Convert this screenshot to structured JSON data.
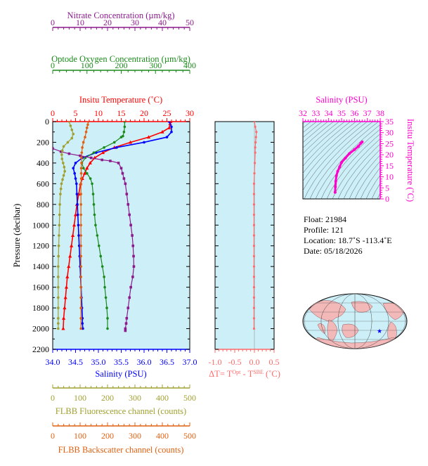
{
  "colors": {
    "nitrate": "#8b1a8b",
    "oxygen": "#1a8a1a",
    "temperature": "#ff0000",
    "salinity": "#0000ff",
    "fluorescence": "#a0a030",
    "backscatter": "#e06010",
    "deltaT": "#ff6a6a",
    "ts": "#ff00cc",
    "plot_bg": "#cdeff8"
  },
  "axes": {
    "nitrate": {
      "label": "Nitrate Concentration (µm/kg)",
      "range": [
        0,
        50
      ],
      "ticks": [
        "0",
        "10",
        "20",
        "30",
        "40",
        "50"
      ]
    },
    "oxygen": {
      "label": "Optode Oxygen Concentration (µm/kg)",
      "range": [
        0,
        400
      ],
      "ticks": [
        "0",
        "100",
        "200",
        "300",
        "400"
      ]
    },
    "temperature": {
      "label": "Insitu Temperature (˚C)",
      "range": [
        0,
        30
      ],
      "ticks": [
        "0",
        "5",
        "10",
        "15",
        "20",
        "25",
        "30"
      ]
    },
    "pressure": {
      "label": "Pressure (decibar)",
      "range": [
        0,
        2200
      ],
      "ticks": [
        "0",
        "200",
        "400",
        "600",
        "800",
        "1000",
        "1200",
        "1400",
        "1600",
        "1800",
        "2000",
        "2200"
      ]
    },
    "salinity": {
      "label": "Salinity (PSU)",
      "range": [
        34.0,
        37.0
      ],
      "ticks": [
        "34.0",
        "34.5",
        "35.0",
        "35.5",
        "36.0",
        "36.5",
        "37.0"
      ]
    },
    "fluorescence": {
      "label": "FLBB Fluorescence channel (counts)",
      "range": [
        0,
        500
      ],
      "ticks": [
        "0",
        "100",
        "200",
        "300",
        "400",
        "500"
      ]
    },
    "backscatter": {
      "label": "FLBB Backscatter channel (counts)",
      "range": [
        0,
        500
      ],
      "ticks": [
        "0",
        "100",
        "200",
        "300",
        "400",
        "500"
      ]
    },
    "deltaT": {
      "label_prefix": "ΔT= T",
      "label_sup1": "Opt",
      "label_mid": " - T",
      "label_sup2": "SBE",
      "label_suffix": " (˚C)",
      "range": [
        -1.0,
        0.5
      ],
      "ticks": [
        "-1.0",
        "-0.5",
        "0.0",
        "0.5"
      ]
    },
    "ts_salinity": {
      "label": "Salinity (PSU)",
      "range": [
        32,
        38
      ],
      "ticks": [
        "32",
        "33",
        "34",
        "35",
        "36",
        "37",
        "38"
      ]
    },
    "ts_temperature": {
      "label": "Insitu Temperature (˚C)",
      "range": [
        0,
        35
      ],
      "ticks": [
        "0",
        "5",
        "10",
        "15",
        "20",
        "25",
        "30",
        "35"
      ]
    }
  },
  "chart_data": [
    {
      "type": "line",
      "series": [
        {
          "name": "Temperature",
          "x": [
            25.8,
            25.7,
            25.5,
            24,
            21,
            17,
            13.5,
            11,
            9.2,
            8.2,
            7.5,
            7.0,
            6.5,
            6.1,
            5.7,
            5.3,
            5.0,
            4.7,
            4.4,
            4.1,
            3.8,
            3.5,
            3.2,
            3.0,
            2.8,
            2.6,
            2.4,
            2.3
          ],
          "p": [
            0,
            20,
            60,
            100,
            150,
            200,
            250,
            300,
            350,
            400,
            450,
            500,
            550,
            600,
            700,
            800,
            900,
            1000,
            1100,
            1200,
            1300,
            1400,
            1500,
            1600,
            1700,
            1800,
            1900,
            2000
          ]
        },
        {
          "name": "Salinity",
          "x": [
            36.55,
            36.6,
            36.6,
            36.5,
            36.0,
            35.4,
            34.95,
            34.65,
            34.5,
            34.45,
            34.48,
            34.5,
            34.52,
            34.53,
            34.54,
            34.55,
            34.56,
            34.57,
            34.58,
            34.59,
            34.6,
            34.61,
            34.62,
            34.63,
            34.64,
            34.65,
            34.65,
            34.66
          ],
          "p": [
            0,
            50,
            100,
            150,
            200,
            250,
            300,
            350,
            400,
            450,
            500,
            550,
            600,
            700,
            800,
            900,
            1000,
            1100,
            1200,
            1300,
            1400,
            1500,
            1600,
            1700,
            1800,
            1900,
            1950,
            2000
          ]
        },
        {
          "name": "Oxygen",
          "x": [
            210,
            210,
            208,
            205,
            200,
            180,
            150,
            120,
            95,
            85,
            90,
            100,
            110,
            115,
            118,
            120,
            122,
            125,
            130,
            135,
            140,
            145,
            150,
            152,
            155,
            158,
            160,
            160
          ],
          "p": [
            0,
            50,
            100,
            140,
            150,
            200,
            250,
            300,
            350,
            400,
            450,
            500,
            550,
            600,
            700,
            800,
            900,
            1000,
            1100,
            1200,
            1300,
            1400,
            1500,
            1600,
            1700,
            1800,
            1900,
            2000
          ]
        },
        {
          "name": "Nitrate",
          "x": [
            0,
            3,
            6,
            10,
            14,
            18,
            21,
            24,
            25,
            25.5,
            26,
            26.5,
            27,
            27.5,
            28,
            28.5,
            29,
            29.3,
            29.5,
            29.6,
            29.2,
            28.5,
            28,
            27.5,
            27,
            26.8,
            26.5,
            26.5
          ],
          "p": [
            260,
            290,
            310,
            330,
            350,
            370,
            380,
            400,
            450,
            500,
            550,
            600,
            700,
            800,
            900,
            1000,
            1100,
            1200,
            1300,
            1400,
            1500,
            1600,
            1700,
            1800,
            1900,
            1950,
            2000,
            2020
          ]
        },
        {
          "name": "Fluorescence",
          "x": [
            60,
            65,
            70,
            75,
            70,
            55,
            40,
            35,
            33,
            34,
            38,
            42,
            44,
            40,
            36,
            32,
            30,
            28,
            26,
            25,
            24,
            23,
            22,
            21,
            20,
            20,
            20,
            20,
            20,
            20,
            20,
            20
          ],
          "p": [
            0,
            40,
            80,
            120,
            160,
            200,
            240,
            280,
            320,
            360,
            400,
            440,
            480,
            520,
            560,
            600,
            650,
            700,
            800,
            900,
            1000,
            1100,
            1200,
            1300,
            1400,
            1500,
            1600,
            1700,
            1800,
            1900,
            1950,
            2000
          ]
        },
        {
          "name": "Backscatter",
          "x": [
            130,
            128,
            125,
            122,
            118,
            112,
            108,
            106,
            105,
            105,
            104,
            104,
            104,
            103,
            103,
            103,
            103,
            103,
            103,
            103,
            103,
            103,
            103,
            103,
            103,
            103,
            103,
            103
          ],
          "p": [
            0,
            30,
            60,
            100,
            150,
            200,
            250,
            300,
            350,
            400,
            450,
            500,
            550,
            600,
            700,
            800,
            900,
            1000,
            1100,
            1200,
            1300,
            1400,
            1500,
            1600,
            1700,
            1800,
            1900,
            2000
          ]
        }
      ]
    },
    {
      "type": "scatter",
      "series": [
        {
          "name": "DeltaT",
          "x": [
            0.0,
            0.02,
            0.05,
            0.04,
            0.03,
            0.02,
            0.02,
            0.01,
            0.0,
            -0.01,
            -0.01,
            -0.01,
            -0.01,
            -0.01,
            -0.01,
            -0.01,
            -0.01,
            -0.01,
            -0.01,
            -0.01,
            -0.01,
            -0.01,
            -0.01,
            -0.01
          ],
          "p": [
            0,
            50,
            100,
            150,
            200,
            250,
            300,
            400,
            500,
            600,
            700,
            800,
            900,
            1000,
            1100,
            1200,
            1300,
            1400,
            1500,
            1600,
            1700,
            1800,
            1900,
            2000
          ]
        }
      ]
    },
    {
      "type": "line",
      "series": [
        {
          "name": "TS",
          "x": [
            36.6,
            36.5,
            36.3,
            36.0,
            35.6,
            35.3,
            35.0,
            34.85,
            34.7,
            34.6,
            34.55,
            34.52,
            34.5
          ],
          "y": [
            25.8,
            25.2,
            23.8,
            22.3,
            20.5,
            18.5,
            16.5,
            14.5,
            12.5,
            10.5,
            8,
            5.5,
            3
          ]
        }
      ]
    }
  ],
  "info": {
    "float": "Float:  21984",
    "profile": "Profile:  121",
    "location": "Location:  18.7˚S  -113.4˚E",
    "date": "Date:  05/18/2026"
  },
  "map": {
    "marker_icon": "star-icon"
  }
}
